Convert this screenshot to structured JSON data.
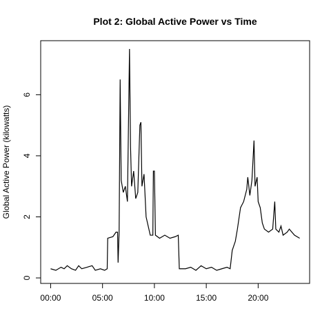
{
  "chart_data": {
    "type": "line",
    "title": "Plot 2: Global Active Power vs Time",
    "y_label": "Global Active Power (kilowatts)",
    "color": "#000000",
    "x": [
      0,
      0.5,
      1,
      1.3,
      1.6,
      2,
      2.4,
      2.7,
      3,
      3.5,
      4,
      4.3,
      4.8,
      5.2,
      5.45,
      5.5,
      6,
      6.3,
      6.45,
      6.5,
      6.6,
      6.7,
      6.8,
      7,
      7.2,
      7.4,
      7.6,
      7.7,
      7.8,
      8,
      8.2,
      8.4,
      8.6,
      8.7,
      8.8,
      9,
      9.2,
      9.4,
      9.6,
      9.85,
      9.9,
      10,
      10.1,
      10.5,
      11,
      11.5,
      12,
      12.3,
      12.4,
      13,
      13.5,
      14,
      14.5,
      15,
      15.5,
      16,
      16.5,
      17,
      17.3,
      17.5,
      17.8,
      18,
      18.3,
      18.6,
      18.9,
      19,
      19.2,
      19.4,
      19.6,
      19.7,
      19.9,
      20,
      20.2,
      20.4,
      20.6,
      21,
      21.4,
      21.6,
      21.7,
      22,
      22.2,
      22.4,
      22.8,
      23,
      23.5,
      24
    ],
    "values": [
      0.3,
      0.25,
      0.35,
      0.3,
      0.4,
      0.3,
      0.25,
      0.4,
      0.3,
      0.35,
      0.4,
      0.25,
      0.3,
      0.25,
      0.3,
      1.3,
      1.35,
      1.5,
      1.5,
      0.5,
      1.5,
      6.5,
      3.2,
      2.8,
      3.0,
      2.5,
      7.5,
      4.3,
      3.0,
      3.5,
      2.6,
      2.8,
      5.0,
      5.1,
      3.0,
      3.4,
      2.0,
      1.7,
      1.4,
      1.4,
      3.5,
      3.5,
      1.4,
      1.3,
      1.4,
      1.3,
      1.35,
      1.4,
      0.3,
      0.3,
      0.35,
      0.25,
      0.4,
      0.3,
      0.35,
      0.25,
      0.3,
      0.35,
      0.3,
      0.9,
      1.2,
      1.6,
      2.3,
      2.5,
      2.9,
      3.3,
      2.7,
      3.2,
      4.5,
      3.0,
      3.3,
      2.5,
      2.3,
      1.8,
      1.6,
      1.5,
      1.6,
      2.5,
      1.6,
      1.5,
      1.7,
      1.4,
      1.5,
      1.6,
      1.4,
      1.3
    ],
    "xlim": [
      -0.96,
      24.96
    ],
    "ylim": [
      -0.18,
      7.77
    ],
    "xticks": [
      {
        "value": 0,
        "label": "00:00"
      },
      {
        "value": 5,
        "label": "05:00"
      },
      {
        "value": 10,
        "label": "10:00"
      },
      {
        "value": 15,
        "label": "15:00"
      },
      {
        "value": 20,
        "label": "20:00"
      }
    ],
    "yticks": [
      0,
      2,
      4,
      6
    ]
  }
}
